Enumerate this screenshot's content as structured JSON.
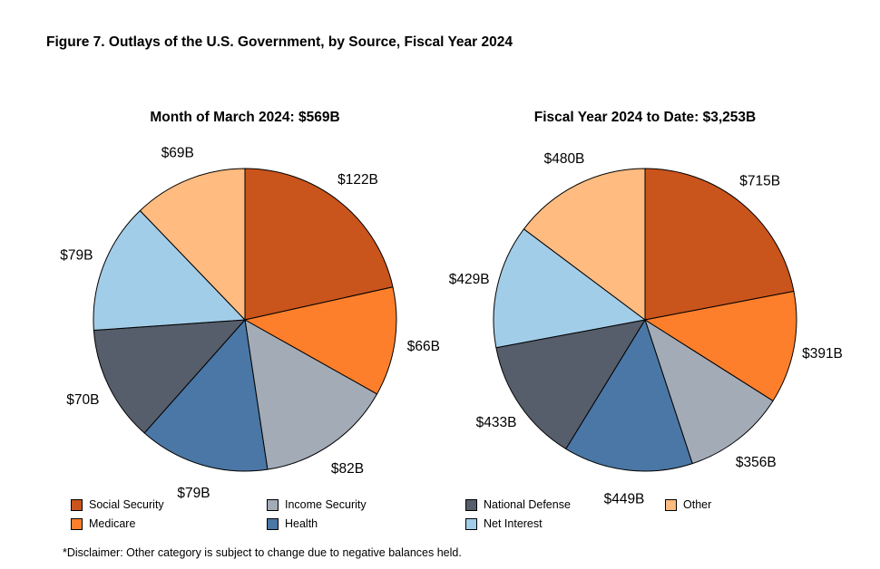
{
  "figure_title": "Figure 7. Outlays of the U.S. Government, by Source, Fiscal Year 2024",
  "disclaimer": "*Disclaimer: Other category is subject to change due to negative balances held.",
  "chart_data": [
    {
      "type": "pie",
      "title": "Month of March 2024: $569B",
      "slices": [
        {
          "name": "Social Security",
          "value": 122,
          "label": "$122B"
        },
        {
          "name": "Medicare",
          "value": 66,
          "label": "$66B"
        },
        {
          "name": "Income Security",
          "value": 82,
          "label": "$82B"
        },
        {
          "name": "Health",
          "value": 79,
          "label": "$79B"
        },
        {
          "name": "National Defense",
          "value": 70,
          "label": "$70B"
        },
        {
          "name": "Net Interest",
          "value": 79,
          "label": "$79B"
        },
        {
          "name": "Other",
          "value": 69,
          "label": "$69B"
        }
      ]
    },
    {
      "type": "pie",
      "title": "Fiscal Year 2024 to Date: $3,253B",
      "slices": [
        {
          "name": "Social Security",
          "value": 715,
          "label": "$715B"
        },
        {
          "name": "Medicare",
          "value": 391,
          "label": "$391B"
        },
        {
          "name": "Income Security",
          "value": 356,
          "label": "$356B"
        },
        {
          "name": "Health",
          "value": 449,
          "label": "$449B"
        },
        {
          "name": "National Defense",
          "value": 433,
          "label": "$433B"
        },
        {
          "name": "Net Interest",
          "value": 429,
          "label": "$429B"
        },
        {
          "name": "Other",
          "value": 480,
          "label": "$480B"
        }
      ]
    }
  ],
  "legend": [
    {
      "name": "Social Security",
      "color": "#c9541c"
    },
    {
      "name": "Income Security",
      "color": "#a3abb7"
    },
    {
      "name": "National Defense",
      "color": "#565d6b"
    },
    {
      "name": "Other",
      "color": "#ffbb80"
    },
    {
      "name": "Medicare",
      "color": "#fd7f2c"
    },
    {
      "name": "Health",
      "color": "#4a77a5"
    },
    {
      "name": "Net Interest",
      "color": "#a2cde8"
    }
  ]
}
